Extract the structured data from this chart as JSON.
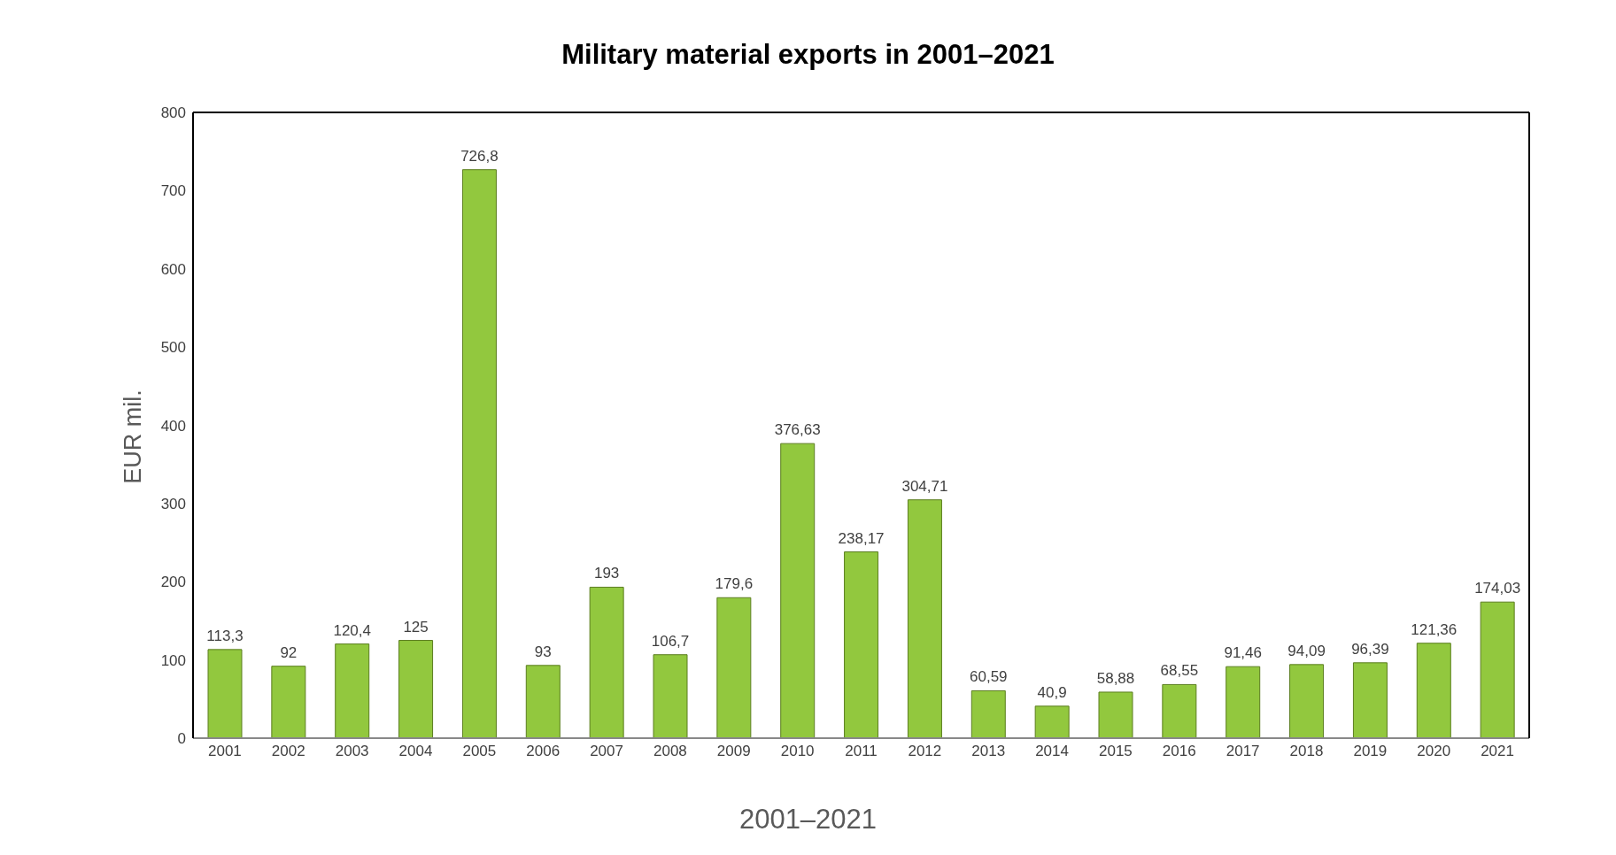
{
  "chart_data": {
    "type": "bar",
    "title": "Military material exports in 2001–2021",
    "xlabel": "2001–2021",
    "ylabel": "EUR mil.",
    "categories": [
      "2001",
      "2002",
      "2003",
      "2004",
      "2005",
      "2006",
      "2007",
      "2008",
      "2009",
      "2010",
      "2011",
      "2012",
      "2013",
      "2014",
      "2015",
      "2016",
      "2017",
      "2018",
      "2019",
      "2020",
      "2021"
    ],
    "values": [
      113.3,
      92,
      120.4,
      125,
      726.8,
      93,
      193,
      106.7,
      179.6,
      376.63,
      238.17,
      304.71,
      60.59,
      40.9,
      58.88,
      68.55,
      91.46,
      94.09,
      96.39,
      121.36,
      174.03
    ],
    "value_labels": [
      "113,3",
      "92",
      "120,4",
      "125",
      "726,8",
      "93",
      "193",
      "106,7",
      "179,6",
      "376,63",
      "238,17",
      "304,71",
      "60,59",
      "40,9",
      "58,88",
      "68,55",
      "91,46",
      "94,09",
      "96,39",
      "121,36",
      "174,03"
    ],
    "color": "#92c83e",
    "ylim": [
      0,
      800
    ],
    "yticks": [
      0,
      100,
      200,
      300,
      400,
      500,
      600,
      700,
      800
    ],
    "grid": false
  }
}
